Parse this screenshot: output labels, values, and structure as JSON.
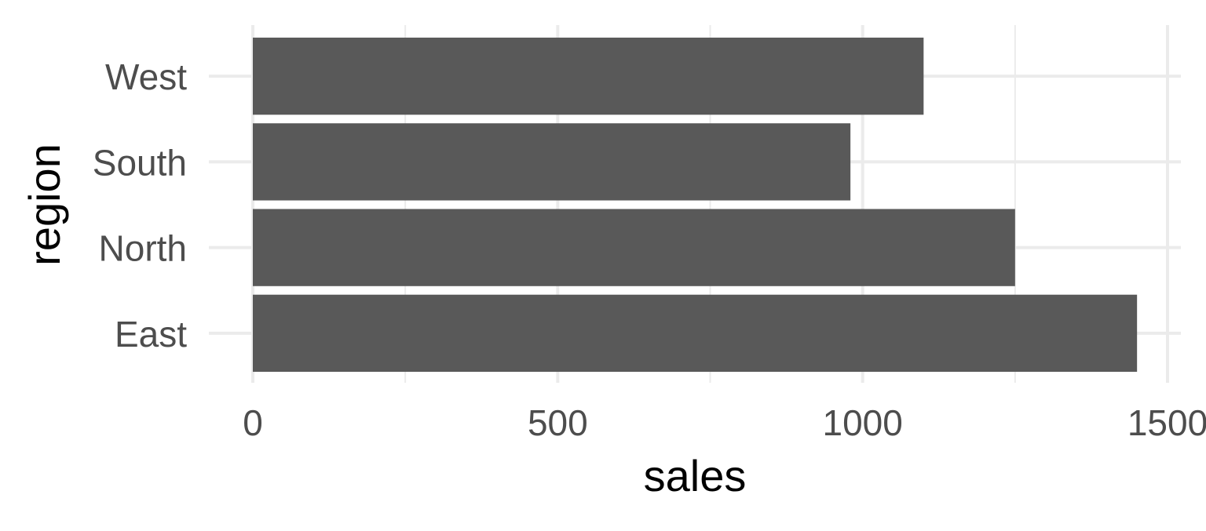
{
  "chart_data": {
    "type": "bar",
    "orientation": "horizontal",
    "categories": [
      "East",
      "North",
      "South",
      "West"
    ],
    "values": [
      1450,
      1250,
      980,
      1100
    ],
    "xlabel": "sales",
    "ylabel": "region",
    "xlim": [
      0,
      1500
    ],
    "x_ticks": [
      0,
      500,
      1000,
      1500
    ],
    "x_minor_ticks": [
      250,
      750,
      1250
    ],
    "grid": true,
    "legend": "none",
    "colors": {
      "bar": "#595959",
      "grid": "#ebebeb",
      "tick_label": "#4d4d4d",
      "axis_title": "#000000",
      "background": "#ffffff"
    }
  }
}
